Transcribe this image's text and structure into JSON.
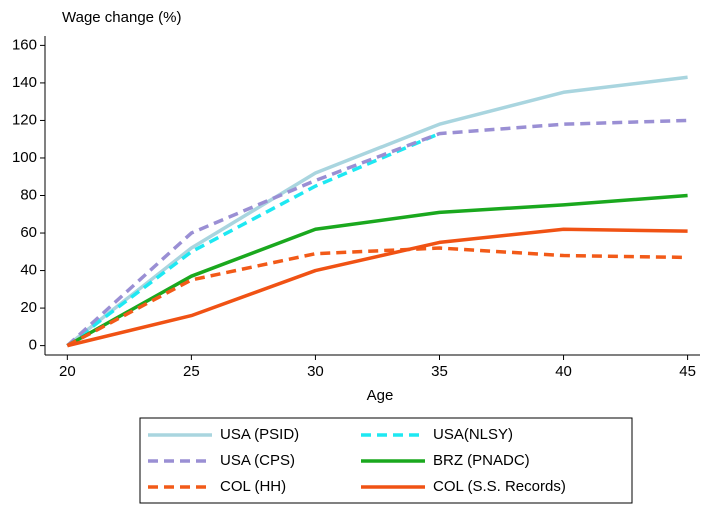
{
  "chart_data": {
    "type": "line",
    "title": "Wage change (%)",
    "x_label": "Age",
    "x": [
      20,
      25,
      30,
      35,
      40,
      45
    ],
    "series": [
      {
        "name": "USA (PSID)",
        "color": "#a9d5df",
        "dash": false,
        "values": [
          0,
          52,
          92,
          118,
          135,
          143
        ]
      },
      {
        "name": "USA(NLSY)",
        "color": "#1ee8f2",
        "dash": true,
        "values": [
          0,
          50,
          85,
          113,
          null,
          null
        ]
      },
      {
        "name": "USA (CPS)",
        "color": "#9a8fd4",
        "dash": true,
        "values": [
          0,
          60,
          88,
          113,
          118,
          120
        ]
      },
      {
        "name": "BRZ (PNADC)",
        "color": "#1aa81e",
        "dash": false,
        "values": [
          0,
          37,
          62,
          71,
          75,
          80
        ]
      },
      {
        "name": "COL (HH)",
        "color": "#f25a18",
        "dash": true,
        "values": [
          0,
          35,
          49,
          52,
          48,
          47
        ]
      },
      {
        "name": "COL (S.S. Records)",
        "color": "#f05214",
        "dash": false,
        "values": [
          0,
          16,
          40,
          55,
          62,
          61
        ]
      }
    ],
    "xlim": [
      19.1,
      45.5
    ],
    "xticks": [
      20,
      25,
      30,
      35,
      40,
      45
    ],
    "ylim": [
      -5,
      165
    ],
    "yticks": [
      0,
      20,
      40,
      60,
      80,
      100,
      120,
      140,
      160
    ],
    "grid": false,
    "legend": "bottom"
  }
}
